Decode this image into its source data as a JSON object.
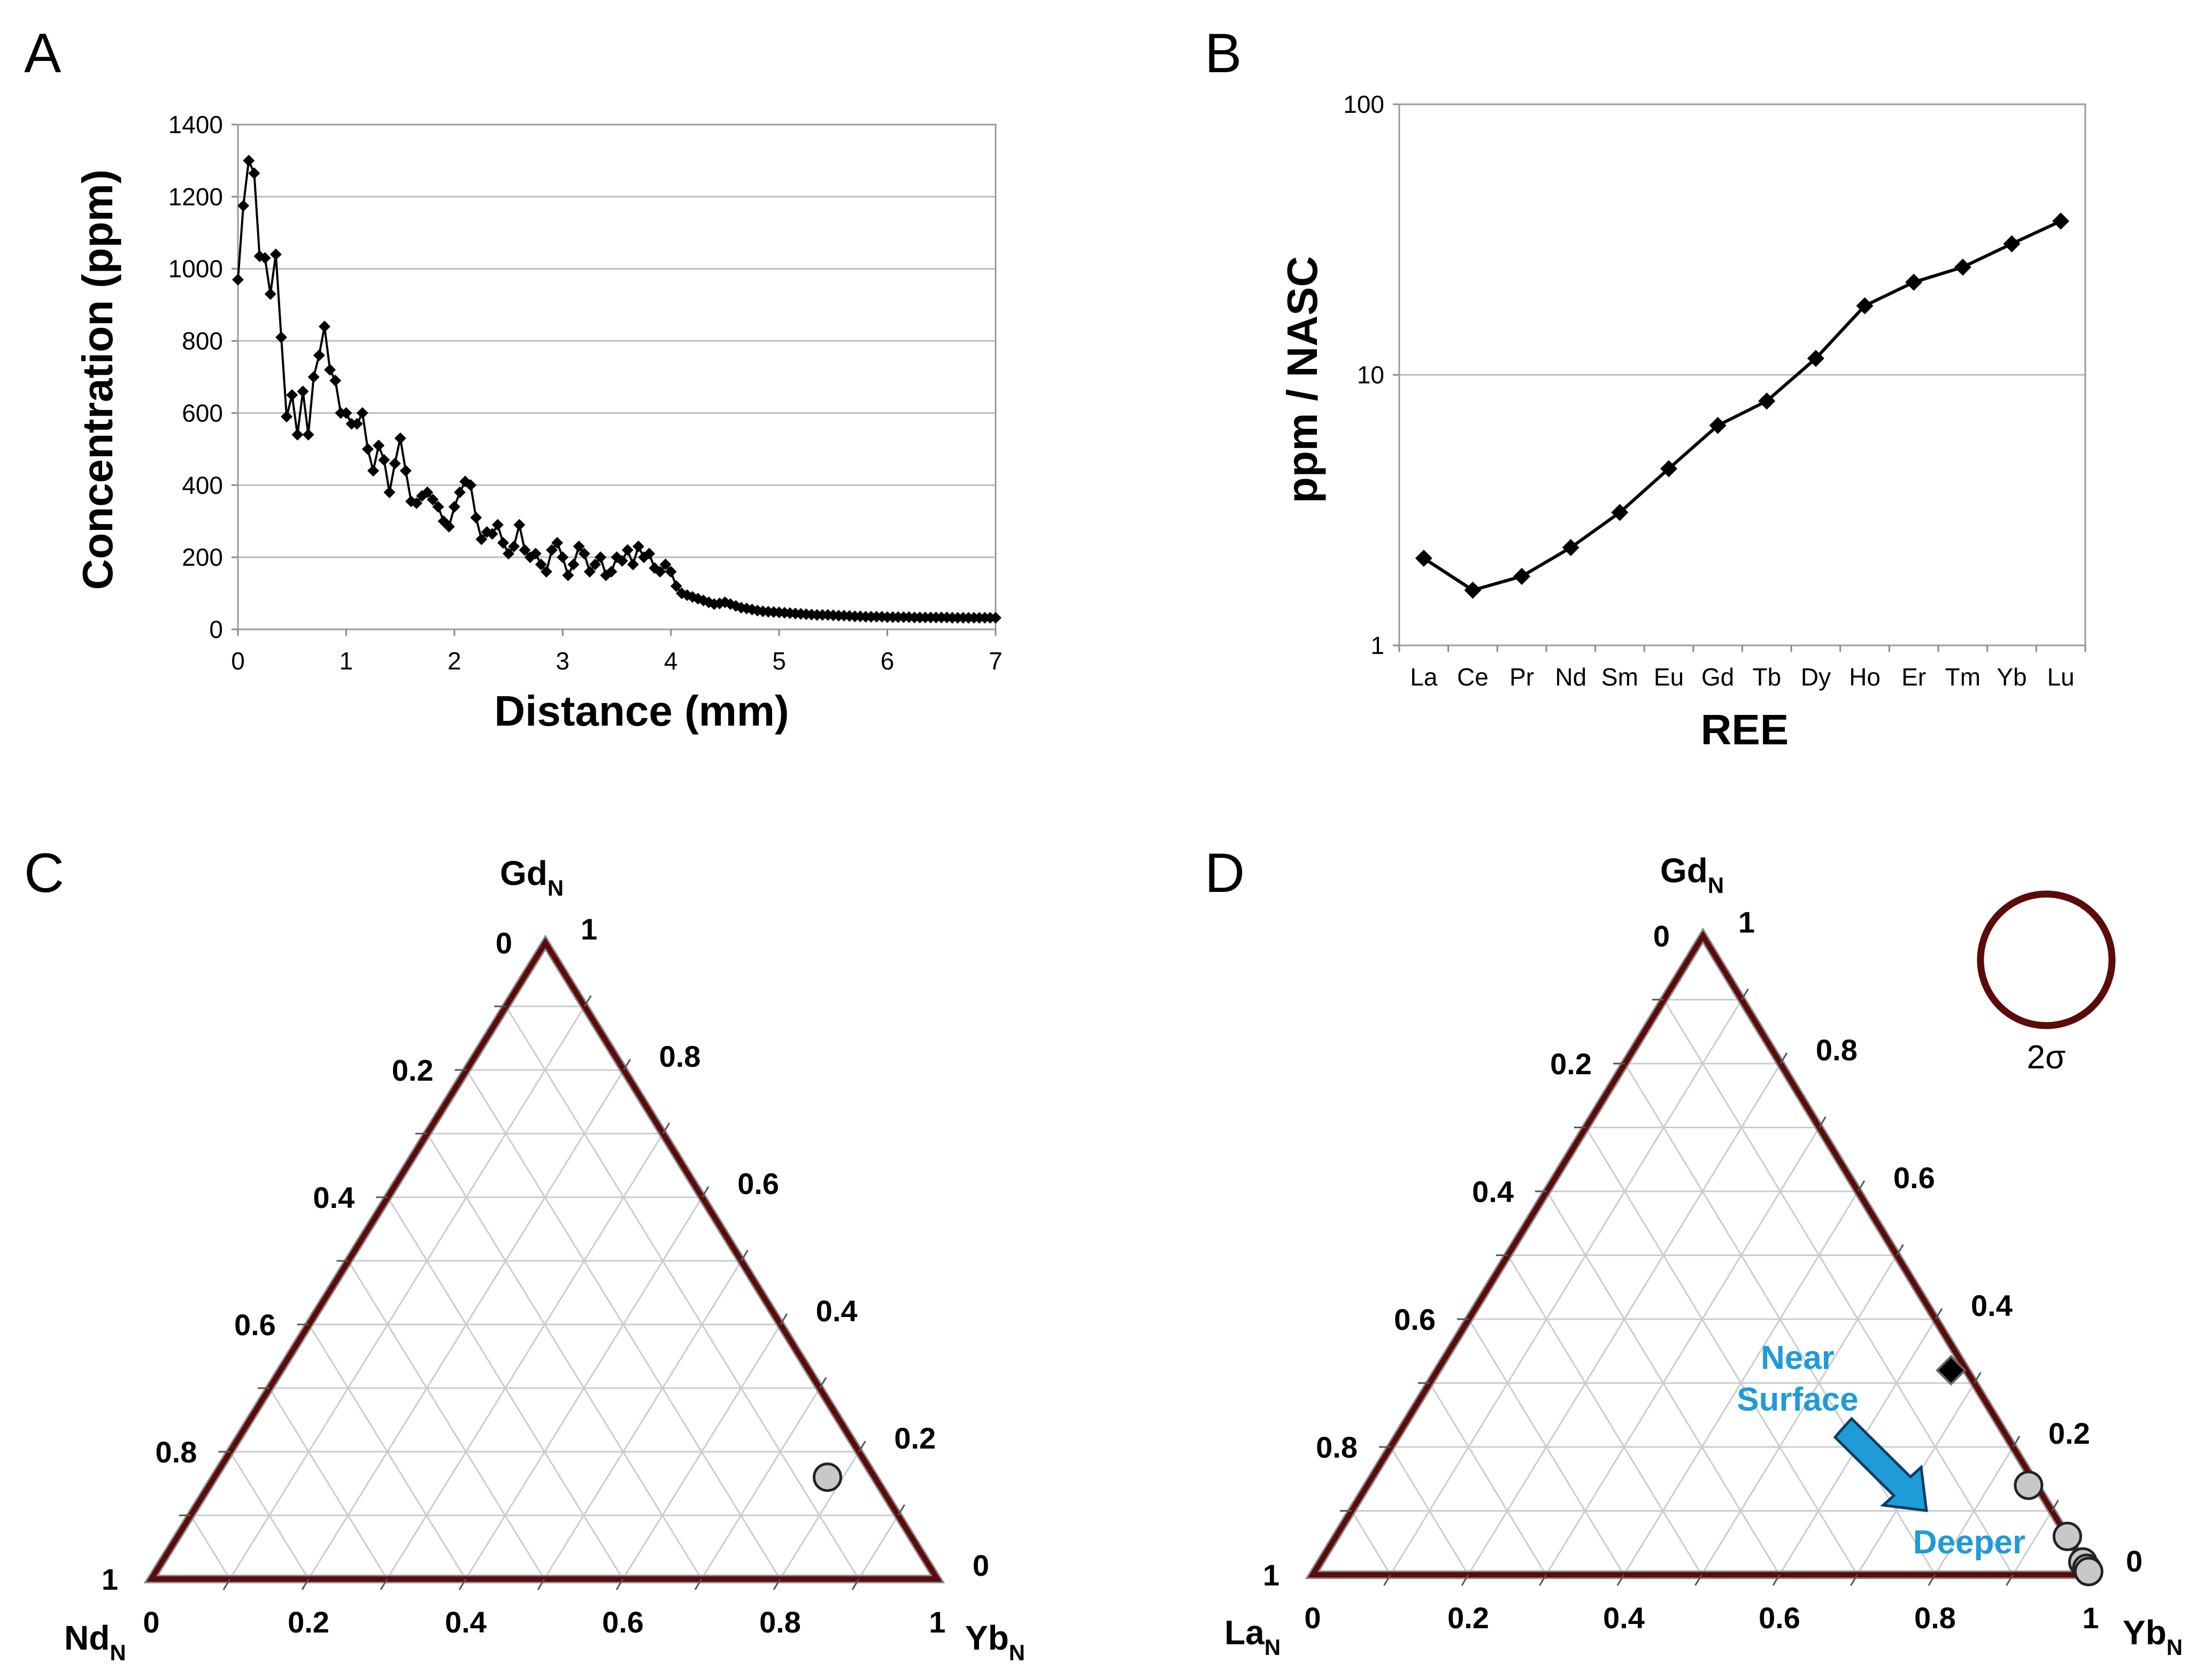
{
  "chart_data": [
    {
      "panel": "A",
      "type": "line",
      "xlabel": "Distance (mm)",
      "ylabel": "Concentration (ppm)",
      "xlim": [
        0,
        7
      ],
      "ylim": [
        0,
        1400
      ],
      "xticks": [
        "0",
        "1",
        "2",
        "3",
        "4",
        "5",
        "6",
        "7"
      ],
      "yticks": [
        "0",
        "200",
        "400",
        "600",
        "800",
        "1000",
        "1200",
        "1400"
      ],
      "grid": true,
      "x": [
        0.0,
        0.05,
        0.1,
        0.15,
        0.2,
        0.25,
        0.3,
        0.35,
        0.4,
        0.45,
        0.5,
        0.55,
        0.6,
        0.65,
        0.7,
        0.75,
        0.8,
        0.85,
        0.9,
        0.95,
        1.0,
        1.05,
        1.1,
        1.15,
        1.2,
        1.25,
        1.3,
        1.35,
        1.4,
        1.45,
        1.5,
        1.55,
        1.6,
        1.65,
        1.7,
        1.75,
        1.8,
        1.85,
        1.9,
        1.95,
        2.0,
        2.05,
        2.1,
        2.15,
        2.2,
        2.25,
        2.3,
        2.35,
        2.4,
        2.45,
        2.5,
        2.55,
        2.6,
        2.65,
        2.7,
        2.75,
        2.8,
        2.85,
        2.9,
        2.95,
        3.0,
        3.05,
        3.1,
        3.15,
        3.2,
        3.25,
        3.3,
        3.35,
        3.4,
        3.45,
        3.5,
        3.55,
        3.6,
        3.65,
        3.7,
        3.75,
        3.8,
        3.85,
        3.9,
        3.95,
        4.0,
        4.05,
        4.1,
        4.15,
        4.2,
        4.25,
        4.3,
        4.35,
        4.4,
        4.45,
        4.5,
        4.55,
        4.6,
        4.65,
        4.7,
        4.75,
        4.8,
        4.85,
        4.9,
        4.95,
        5.0,
        5.05,
        5.1,
        5.15,
        5.2,
        5.25,
        5.3,
        5.35,
        5.4,
        5.45,
        5.5,
        5.55,
        5.6,
        5.65,
        5.7,
        5.75,
        5.8,
        5.85,
        5.9,
        5.95,
        6.0,
        6.05,
        6.1,
        6.15,
        6.2,
        6.25,
        6.3,
        6.35,
        6.4,
        6.45,
        6.5,
        6.55,
        6.6,
        6.65,
        6.7,
        6.75,
        6.8,
        6.85,
        6.9,
        6.95,
        7.0
      ],
      "y": [
        970,
        1175,
        1300,
        1265,
        1035,
        1030,
        930,
        1040,
        810,
        590,
        650,
        540,
        660,
        540,
        700,
        760,
        840,
        720,
        690,
        600,
        600,
        570,
        570,
        600,
        500,
        440,
        510,
        470,
        380,
        460,
        530,
        440,
        355,
        350,
        370,
        380,
        360,
        340,
        300,
        285,
        340,
        380,
        410,
        400,
        310,
        250,
        270,
        265,
        290,
        240,
        210,
        230,
        290,
        220,
        200,
        210,
        180,
        160,
        220,
        240,
        200,
        150,
        180,
        230,
        210,
        160,
        180,
        200,
        150,
        160,
        200,
        190,
        220,
        180,
        230,
        200,
        210,
        170,
        160,
        180,
        160,
        120,
        100,
        95,
        90,
        85,
        80,
        75,
        70,
        72,
        75,
        70,
        65,
        60,
        58,
        55,
        52,
        50,
        49,
        48,
        47,
        46,
        45,
        44,
        43,
        42,
        41,
        40,
        40,
        40,
        39,
        38,
        38,
        37,
        36,
        36,
        35,
        35,
        35,
        35,
        34,
        34,
        34,
        34,
        34,
        33,
        33,
        33,
        33,
        33,
        33,
        33,
        32,
        32,
        32,
        32,
        32,
        32,
        32,
        32,
        32
      ]
    },
    {
      "panel": "B",
      "type": "line",
      "xlabel": "REE",
      "ylabel": "ppm / NASC",
      "yscale": "log",
      "ylim": [
        1,
        100
      ],
      "yticks": [
        "1",
        "10",
        "100"
      ],
      "grid": true,
      "categories": [
        "La",
        "Ce",
        "Pr",
        "Nd",
        "Sm",
        "Eu",
        "Gd",
        "Tb",
        "Dy",
        "Ho",
        "Er",
        "Tm",
        "Yb",
        "Lu"
      ],
      "values": [
        2.1,
        1.6,
        1.8,
        2.3,
        3.1,
        4.5,
        6.5,
        8.0,
        11.5,
        18.0,
        22.0,
        25.0,
        30.5,
        37.0
      ]
    },
    {
      "panel": "C",
      "type": "scatter",
      "ternary": true,
      "apex_top": "Gd",
      "apex_left": "Nd",
      "apex_right": "Yb",
      "subscript": "N",
      "ticks": [
        "0",
        "0.2",
        "0.4",
        "0.6",
        "0.8",
        "1"
      ],
      "points": [
        {
          "top": 0.16,
          "left": 0.06,
          "right": 0.78,
          "style": "grey-circle"
        }
      ]
    },
    {
      "panel": "D",
      "type": "scatter",
      "ternary": true,
      "apex_top": "Gd",
      "apex_left": "La",
      "apex_right": "Yb",
      "subscript": "N",
      "ticks": [
        "0",
        "0.2",
        "0.4",
        "0.6",
        "0.8",
        "1"
      ],
      "points": [
        {
          "top": 0.32,
          "left": 0.02,
          "right": 0.66,
          "style": "black-diamond"
        },
        {
          "top": 0.14,
          "left": 0.01,
          "right": 0.85,
          "style": "grey-circle"
        },
        {
          "top": 0.06,
          "left": 0.0,
          "right": 0.94,
          "style": "grey-circle"
        },
        {
          "top": 0.02,
          "left": 0.0,
          "right": 0.98,
          "style": "grey-circle"
        },
        {
          "top": 0.01,
          "left": 0.0,
          "right": 0.99,
          "style": "grey-circle"
        },
        {
          "top": 0.005,
          "left": 0.0,
          "right": 0.995,
          "style": "grey-circle"
        }
      ],
      "annotations": {
        "start": "Near",
        "start2": "Surface",
        "end": "Deeper",
        "error_label": "2σ"
      }
    }
  ],
  "panel_labels": {
    "a": "A",
    "b": "B",
    "c": "C",
    "d": "D"
  },
  "text": {
    "a_xlabel": "Distance (mm)",
    "a_ylabel": "Concentration (ppm)",
    "b_xlabel": "REE",
    "b_ylabel": "ppm / NASC",
    "sub": "N",
    "gd": "Gd",
    "nd": "Nd",
    "la": "La",
    "yb": "Yb",
    "near": "Near",
    "surface": "Surface",
    "deeper": "Deeper",
    "sigma": "2σ"
  },
  "colors": {
    "frame": "#5c0a0a",
    "grid": "#cccccc",
    "annot": "#1f9bd7",
    "grey_marker": "#c8c8c8"
  }
}
